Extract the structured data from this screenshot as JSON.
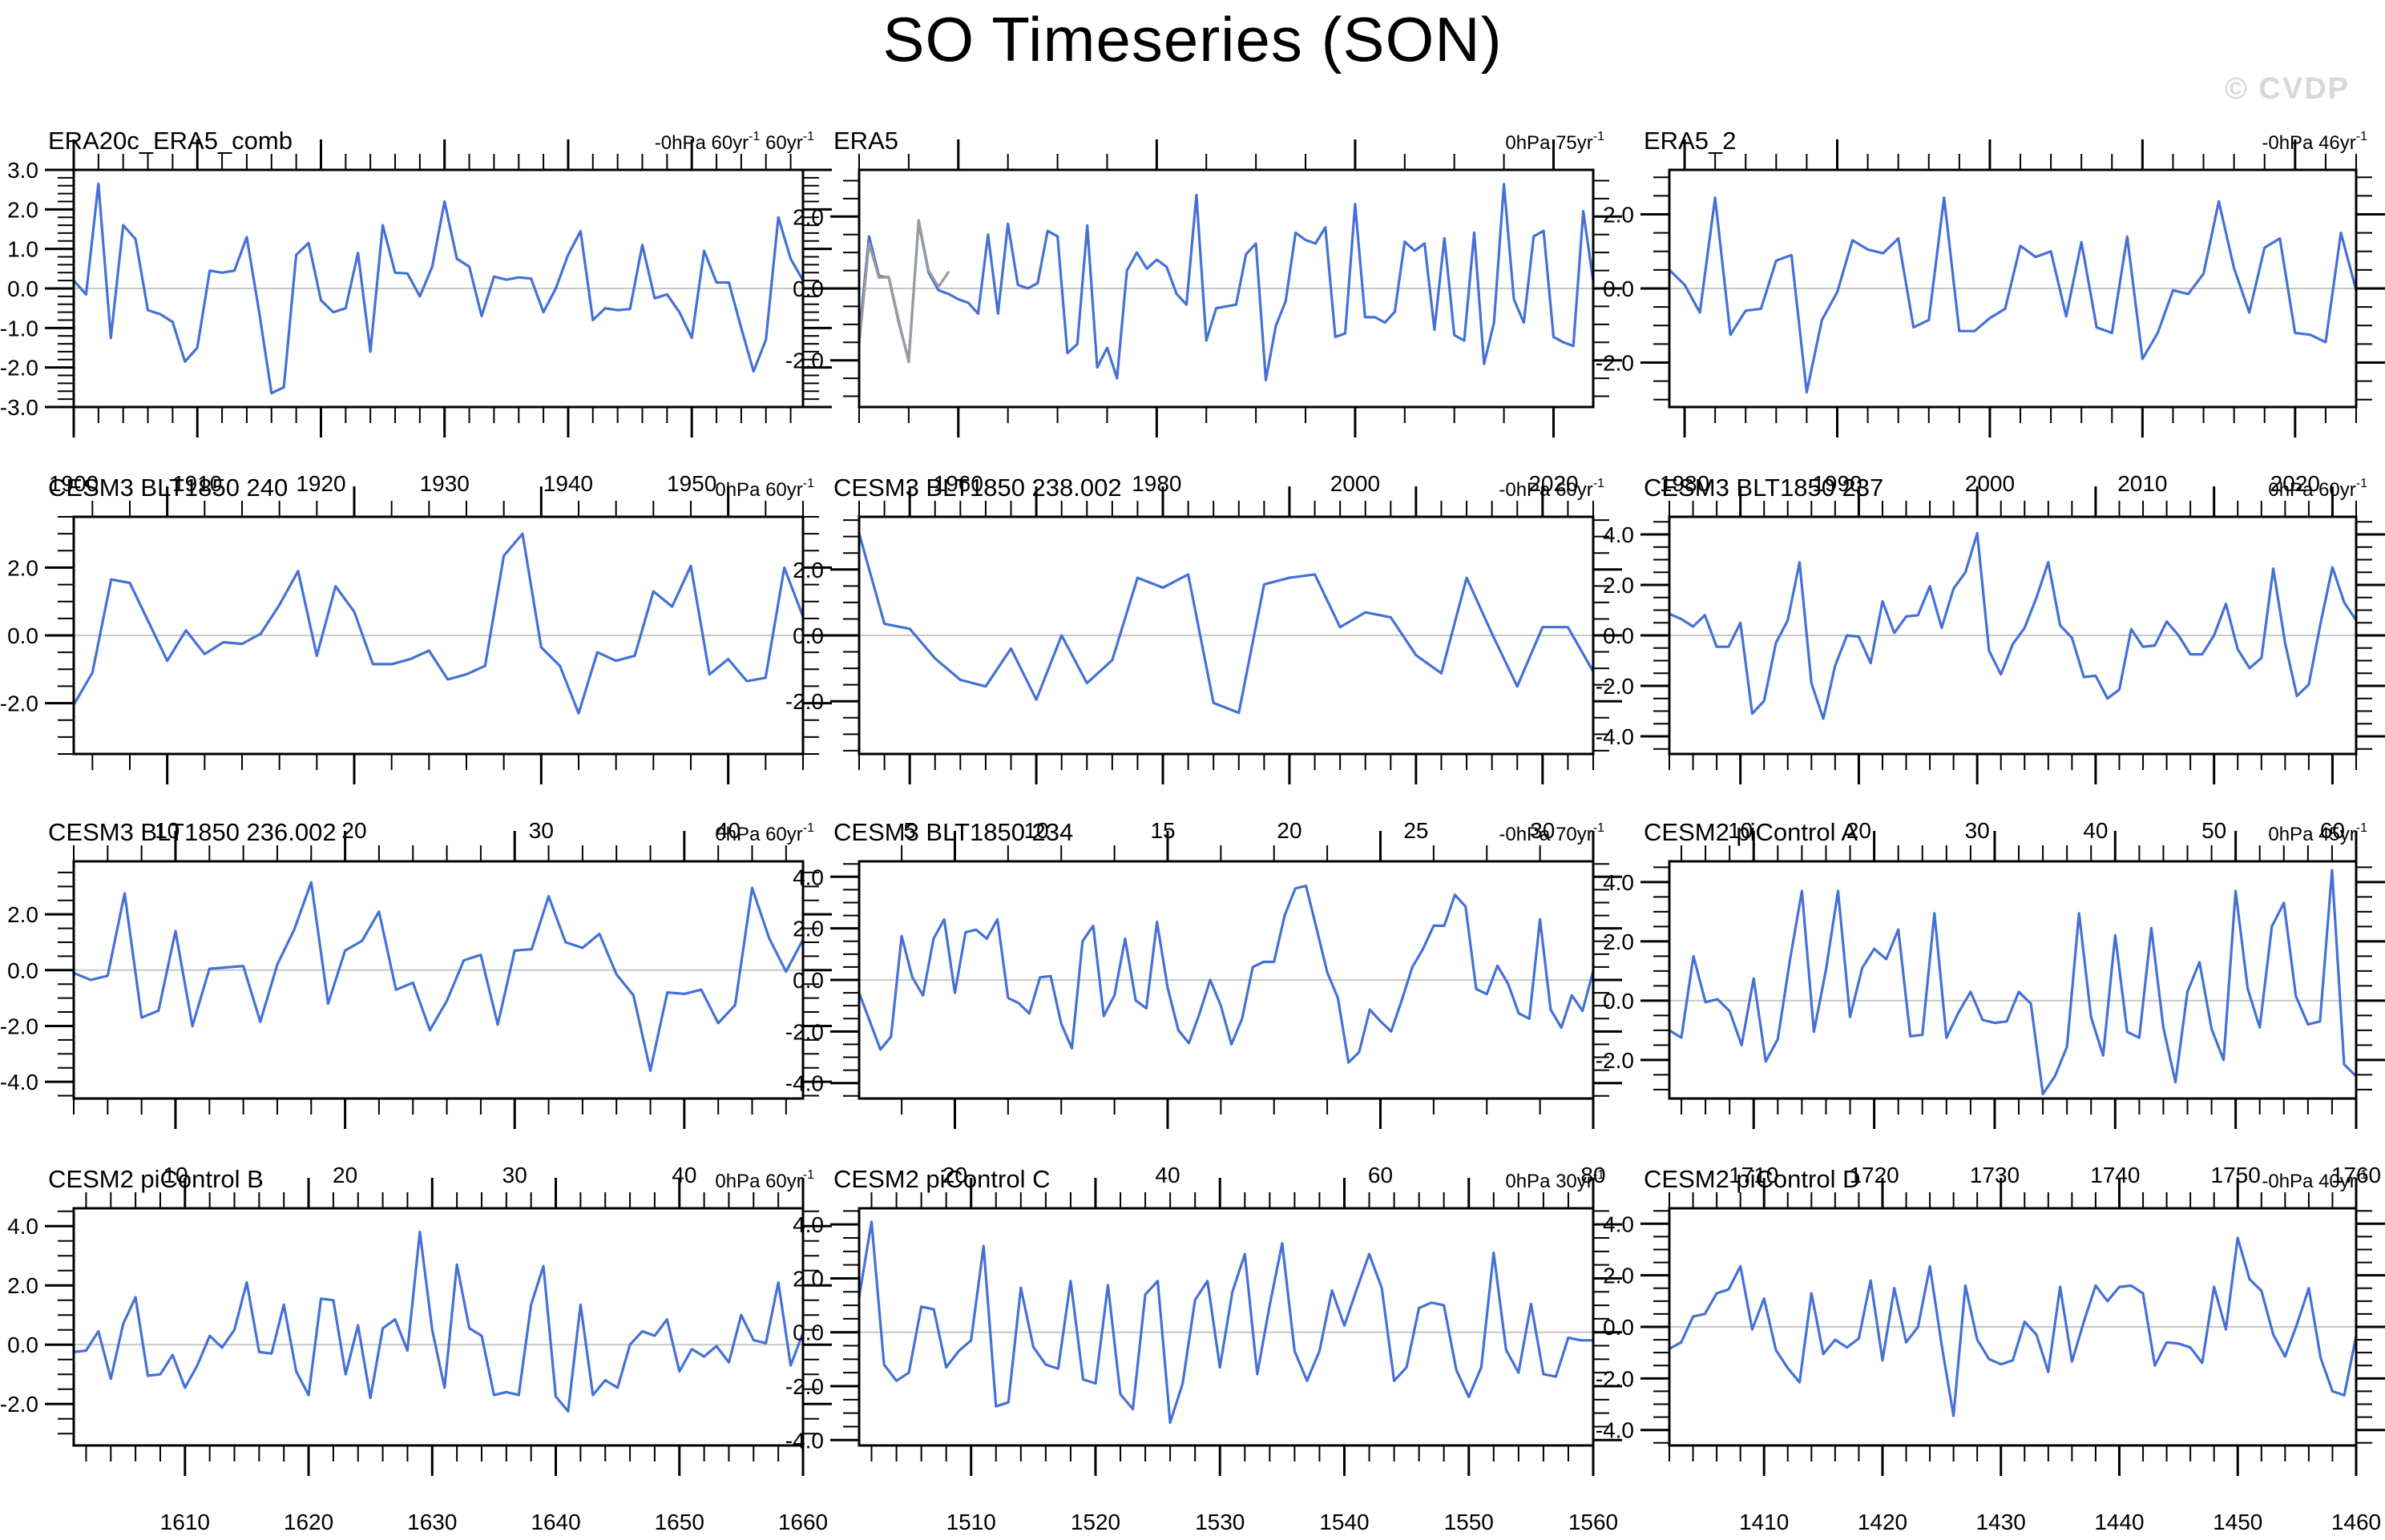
{
  "page": {
    "title": "SO Timeseries (SON)",
    "watermark": "© CVDP"
  },
  "colors": {
    "series_line": "#4471D6",
    "secondary_line": "#9b9b9b",
    "zero_line": "#c8c8c8",
    "axis": "#000000",
    "watermark": "#d8d8d8"
  },
  "chart_data": [
    {
      "type": "line",
      "title": "ERA20c_ERA5_comb",
      "header_right": "-0hPa 60yr^-1 60yr^-1",
      "x_start": 1900,
      "xlim": [
        1900,
        1959
      ],
      "xticks": [
        1900,
        1910,
        1920,
        1930,
        1940,
        1950
      ],
      "x_minor_step": 2,
      "ylim": [
        -3.0,
        3.0
      ],
      "yticks": [
        3.0,
        2.0,
        1.0,
        0.0,
        -1.0,
        -2.0,
        -3.0
      ],
      "y_minor_step": 0.2,
      "values": [
        0.2,
        -0.15,
        2.65,
        -1.25,
        1.6,
        1.25,
        -0.55,
        -0.65,
        -0.85,
        -1.85,
        -1.5,
        0.45,
        0.4,
        0.45,
        1.3,
        -0.6,
        -2.65,
        -2.5,
        0.85,
        1.15,
        -0.3,
        -0.6,
        -0.5,
        0.9,
        -1.6,
        1.6,
        0.4,
        0.38,
        -0.2,
        0.55,
        2.2,
        0.75,
        0.55,
        -0.7,
        0.3,
        0.22,
        0.28,
        0.25,
        -0.6,
        0.0,
        0.85,
        1.45,
        -0.8,
        -0.5,
        -0.55,
        -0.52,
        1.1,
        -0.25,
        -0.15,
        -0.6,
        -1.25,
        0.95,
        0.15,
        0.15,
        -1.0,
        -2.1,
        -1.3,
        1.8,
        0.75,
        0.2
      ]
    },
    {
      "type": "line",
      "title": "ERA5",
      "header_right": "0hPa 75yr^-1",
      "x_start": 1950,
      "xlim": [
        1950,
        2024
      ],
      "xticks": [
        1960,
        1980,
        2000,
        2020
      ],
      "x_minor_step": 5,
      "ylim": [
        -3.3,
        3.3
      ],
      "yticks": [
        2.0,
        0.0,
        -2.0
      ],
      "y_minor_step": 0.5,
      "values": [
        -1.35,
        1.45,
        0.35,
        0.3,
        -0.95,
        -2.0,
        1.85,
        0.45,
        -0.05,
        -0.15,
        -0.3,
        -0.4,
        -0.7,
        1.5,
        -0.7,
        1.8,
        0.1,
        0.0,
        0.15,
        1.6,
        1.45,
        -1.8,
        -1.55,
        1.75,
        -2.2,
        -1.65,
        -2.5,
        0.5,
        1.0,
        0.55,
        0.8,
        0.6,
        -0.15,
        -0.45,
        2.6,
        -1.45,
        -0.55,
        -0.5,
        -0.45,
        0.95,
        1.25,
        -2.55,
        -1.05,
        -0.35,
        1.55,
        1.35,
        1.25,
        1.7,
        -1.35,
        -1.25,
        2.35,
        -0.8,
        -0.8,
        -0.95,
        -0.65,
        1.3,
        1.05,
        1.25,
        -1.15,
        1.4,
        -1.3,
        -1.45,
        1.55,
        -2.1,
        -0.95,
        2.9,
        -0.3,
        -0.95,
        1.45,
        1.6,
        -1.35,
        -1.5,
        -1.6,
        2.15,
        0.2
      ],
      "series2": {
        "name": "overlap segment",
        "x_start": 1950,
        "values": [
          -1.55,
          1.25,
          0.3,
          0.32,
          -0.9,
          -2.05,
          1.9,
          0.5,
          0.05,
          0.45
        ]
      }
    },
    {
      "type": "line",
      "title": "ERA5_2",
      "header_right": "-0hPa 46yr^-1",
      "x_start": 1979,
      "xlim": [
        1979,
        2024
      ],
      "xticks": [
        1980,
        1990,
        2000,
        2010,
        2020
      ],
      "x_minor_step": 2,
      "ylim": [
        -3.2,
        3.2
      ],
      "yticks": [
        2.0,
        0.0,
        -2.0
      ],
      "y_minor_step": 0.5,
      "values": [
        0.5,
        0.1,
        -0.65,
        2.45,
        -1.25,
        -0.6,
        -0.55,
        0.75,
        0.9,
        -2.8,
        -0.85,
        -0.1,
        1.3,
        1.05,
        0.95,
        1.35,
        -1.05,
        -0.85,
        2.45,
        -1.15,
        -1.15,
        -0.8,
        -0.55,
        1.15,
        0.85,
        1.0,
        -0.75,
        1.25,
        -1.05,
        -1.2,
        1.4,
        -1.9,
        -1.2,
        -0.05,
        -0.15,
        0.4,
        2.35,
        0.55,
        -0.65,
        1.1,
        1.35,
        -1.2,
        -1.25,
        -1.45,
        1.5,
        -0.05
      ]
    },
    {
      "type": "line",
      "title": "CESM3 BLT1850 240",
      "header_right": "0hPa 60yr^-1",
      "x_start": 5,
      "xlim": [
        5,
        44
      ],
      "xticks": [
        10,
        20,
        30,
        40
      ],
      "x_minor_step": 2,
      "ylim": [
        -3.5,
        3.5
      ],
      "yticks": [
        2.0,
        0.0,
        -2.0
      ],
      "y_minor_step": 0.5,
      "values": [
        -2.05,
        -1.1,
        1.65,
        1.55,
        0.4,
        -0.75,
        0.15,
        -0.55,
        -0.2,
        -0.25,
        0.05,
        0.9,
        1.9,
        -0.6,
        1.45,
        0.7,
        -0.85,
        -0.85,
        -0.7,
        -0.45,
        -1.3,
        -1.15,
        -0.9,
        2.35,
        3.0,
        -0.35,
        -0.9,
        -2.3,
        -0.5,
        -0.75,
        -0.6,
        1.3,
        0.85,
        2.05,
        -1.15,
        -0.7,
        -1.35,
        -1.25,
        2.0,
        0.55
      ]
    },
    {
      "type": "line",
      "title": "CESM3 BLT1850 238.002",
      "header_right": "-0hPa 60yr^-1",
      "x_start": 3,
      "xlim": [
        3,
        32
      ],
      "xticks": [
        5,
        10,
        15,
        20,
        25,
        30
      ],
      "x_minor_step": 1,
      "ylim": [
        -3.6,
        3.6
      ],
      "yticks": [
        2.0,
        0.0,
        -2.0
      ],
      "y_minor_step": 0.5,
      "values": [
        3.1,
        0.35,
        0.2,
        -0.7,
        -1.35,
        -1.55,
        -0.4,
        -1.95,
        0.0,
        -1.45,
        -0.75,
        1.75,
        1.45,
        1.85,
        -2.05,
        -2.35,
        1.55,
        1.75,
        1.85,
        0.25,
        0.7,
        0.55,
        -0.6,
        -1.15,
        1.75,
        0.05,
        -1.55,
        0.25,
        0.25,
        -1.1
      ]
    },
    {
      "type": "line",
      "title": "CESM3 BLT1850 237",
      "header_right": "0hPa 60yr^-1",
      "x_start": 4,
      "xlim": [
        4,
        62
      ],
      "xticks": [
        10,
        20,
        30,
        40,
        50,
        60
      ],
      "x_minor_step": 2,
      "ylim": [
        -4.7,
        4.7
      ],
      "yticks": [
        4.0,
        2.0,
        0.0,
        -2.0,
        -4.0
      ],
      "y_minor_step": 0.5,
      "values": [
        0.85,
        0.65,
        0.35,
        0.8,
        -0.45,
        -0.45,
        0.5,
        -3.1,
        -2.6,
        -0.3,
        0.6,
        2.9,
        -1.9,
        -3.3,
        -1.2,
        0.0,
        -0.05,
        -1.1,
        1.35,
        0.1,
        0.75,
        0.8,
        1.95,
        0.3,
        1.85,
        2.5,
        4.05,
        -0.6,
        -1.55,
        -0.35,
        0.3,
        1.5,
        2.9,
        0.4,
        -0.1,
        -1.65,
        -1.6,
        -2.5,
        -2.15,
        0.25,
        -0.45,
        -0.4,
        0.55,
        0.0,
        -0.75,
        -0.75,
        0.0,
        1.25,
        -0.55,
        -1.3,
        -0.9,
        2.65,
        -0.3,
        -2.4,
        -1.95,
        0.5,
        2.7,
        1.3,
        0.6
      ]
    },
    {
      "type": "line",
      "title": "CESM3 BLT1850 236.002",
      "header_right": "0hPa 60yr^-1",
      "x_start": 4,
      "xlim": [
        4,
        47
      ],
      "xticks": [
        10,
        20,
        30,
        40
      ],
      "x_minor_step": 2,
      "ylim": [
        -4.6,
        3.9
      ],
      "yticks": [
        2.0,
        0.0,
        -2.0,
        -4.0
      ],
      "y_minor_step": 0.5,
      "values": [
        -0.1,
        -0.35,
        -0.2,
        2.75,
        -1.7,
        -1.45,
        1.4,
        -2.0,
        0.05,
        0.1,
        0.15,
        -1.85,
        0.2,
        1.45,
        3.15,
        -1.2,
        0.7,
        1.05,
        2.1,
        -0.7,
        -0.45,
        -2.15,
        -1.1,
        0.35,
        0.55,
        -1.95,
        0.7,
        0.75,
        2.65,
        1.0,
        0.8,
        1.3,
        -0.15,
        -0.9,
        -3.6,
        -0.8,
        -0.85,
        -0.7,
        -1.9,
        -1.25,
        2.95,
        1.15,
        -0.05,
        1.1
      ]
    },
    {
      "type": "line",
      "title": "CESM3 BLT1850 234",
      "header_right": "-0hPa 70yr^-1",
      "x_start": 11,
      "xlim": [
        11,
        80
      ],
      "xticks": [
        20,
        40,
        60,
        80
      ],
      "x_minor_step": 5,
      "ylim": [
        -4.6,
        4.6
      ],
      "yticks": [
        4.0,
        2.0,
        0.0,
        -2.0,
        -4.0
      ],
      "y_minor_step": 0.5,
      "values": [
        -0.5,
        -1.6,
        -2.7,
        -2.2,
        1.7,
        0.1,
        -0.6,
        1.6,
        2.35,
        -0.5,
        1.85,
        1.95,
        1.6,
        2.35,
        -0.7,
        -0.9,
        -1.3,
        0.1,
        0.15,
        -1.7,
        -2.65,
        1.5,
        2.1,
        -1.4,
        -0.6,
        1.6,
        -0.8,
        -1.1,
        2.25,
        -0.3,
        -1.95,
        -2.45,
        -1.3,
        0.0,
        -1.0,
        -2.5,
        -1.5,
        0.5,
        0.7,
        0.7,
        2.5,
        3.55,
        3.65,
        2.0,
        0.3,
        -0.7,
        -3.2,
        -2.8,
        -1.15,
        -1.6,
        -2.0,
        -0.8,
        0.5,
        1.2,
        2.1,
        2.1,
        3.3,
        2.85,
        -0.35,
        -0.55,
        0.55,
        -0.15,
        -1.3,
        -1.5,
        2.35,
        -1.15,
        -1.85,
        -0.6,
        -1.2,
        0.35
      ]
    },
    {
      "type": "line",
      "title": "CESM2 piControl A",
      "header_right": "0hPa 45yr^-1",
      "x_start": 1703,
      "xlim": [
        1703,
        1760
      ],
      "xticks": [
        1710,
        1720,
        1730,
        1740,
        1750,
        1760
      ],
      "x_minor_step": 2,
      "ylim": [
        -3.3,
        4.7
      ],
      "yticks": [
        4.0,
        2.0,
        0.0,
        -2.0
      ],
      "y_minor_step": 0.5,
      "values": [
        -1.0,
        -1.25,
        1.5,
        -0.05,
        0.05,
        -0.35,
        -1.5,
        0.75,
        -2.05,
        -1.3,
        1.35,
        3.7,
        -1.05,
        1.05,
        3.7,
        -0.55,
        1.1,
        1.75,
        1.4,
        2.4,
        -1.2,
        -1.15,
        2.95,
        -1.25,
        -0.4,
        0.3,
        -0.65,
        -0.75,
        -0.7,
        0.3,
        -0.1,
        -3.15,
        -2.55,
        -1.55,
        2.95,
        -0.55,
        -1.85,
        2.2,
        -1.05,
        -1.25,
        2.45,
        -0.9,
        -2.75,
        0.3,
        1.3,
        -0.95,
        -2.0,
        3.7,
        0.4,
        -0.9,
        2.5,
        3.3,
        0.15,
        -0.8,
        -0.7,
        4.4,
        -2.15,
        -2.55
      ]
    },
    {
      "type": "line",
      "title": "CESM2 piControl B",
      "header_right": "0hPa 60yr^-1",
      "x_start": 1601,
      "xlim": [
        1601,
        1660
      ],
      "xticks": [
        1610,
        1620,
        1630,
        1640,
        1650,
        1660
      ],
      "x_minor_step": 2,
      "ylim": [
        -3.4,
        4.6
      ],
      "yticks": [
        4.0,
        2.0,
        0.0,
        -2.0
      ],
      "y_minor_step": 0.5,
      "values": [
        -0.25,
        -0.2,
        0.45,
        -1.15,
        0.7,
        1.6,
        -1.05,
        -1.0,
        -0.35,
        -1.45,
        -0.7,
        0.3,
        -0.1,
        0.5,
        2.1,
        -0.25,
        -0.3,
        1.35,
        -0.9,
        -1.7,
        1.55,
        1.5,
        -1.0,
        0.65,
        -1.8,
        0.55,
        0.85,
        -0.2,
        3.8,
        0.5,
        -1.45,
        2.7,
        0.55,
        0.3,
        -1.7,
        -1.6,
        -1.7,
        1.35,
        2.65,
        -1.75,
        -2.25,
        1.35,
        -1.7,
        -1.2,
        -1.45,
        0.0,
        0.45,
        0.3,
        0.85,
        -0.9,
        -0.15,
        -0.4,
        -0.05,
        -0.6,
        1.0,
        0.15,
        0.05,
        2.1,
        -0.7,
        0.4
      ]
    },
    {
      "type": "line",
      "title": "CESM2 piControl C",
      "header_right": "0hPa 30yr^-1",
      "x_start": 1501,
      "xlim": [
        1501,
        1560
      ],
      "xticks": [
        1510,
        1520,
        1530,
        1540,
        1550,
        1560
      ],
      "x_minor_step": 2,
      "ylim": [
        -4.2,
        4.6
      ],
      "yticks": [
        4.0,
        2.0,
        0.0,
        -2.0,
        -4.0
      ],
      "y_minor_step": 0.5,
      "values": [
        1.3,
        4.1,
        -1.2,
        -1.8,
        -1.5,
        0.95,
        0.85,
        -1.3,
        -0.7,
        -0.3,
        3.2,
        -2.75,
        -2.6,
        1.65,
        -0.55,
        -1.2,
        -1.35,
        1.9,
        -1.75,
        -1.9,
        1.75,
        -2.3,
        -2.85,
        1.4,
        1.9,
        -3.35,
        -1.9,
        1.2,
        1.9,
        -1.3,
        1.5,
        2.9,
        -1.55,
        1.0,
        3.3,
        -0.7,
        -1.8,
        -0.7,
        1.55,
        0.25,
        1.6,
        2.9,
        1.65,
        -1.8,
        -1.3,
        0.9,
        1.1,
        1.0,
        -1.4,
        -2.4,
        -1.3,
        2.95,
        -0.65,
        -1.5,
        1.05,
        -1.55,
        -1.65,
        -0.2,
        -0.3,
        -0.3
      ]
    },
    {
      "type": "line",
      "title": "CESM2 piControl D",
      "header_right": "-0hPa 40yr^-1",
      "x_start": 1402,
      "xlim": [
        1402,
        1460
      ],
      "xticks": [
        1410,
        1420,
        1430,
        1440,
        1450,
        1460
      ],
      "x_minor_step": 2,
      "ylim": [
        -4.6,
        4.6
      ],
      "yticks": [
        4.0,
        2.0,
        0.0,
        -2.0,
        -4.0
      ],
      "y_minor_step": 0.5,
      "values": [
        -0.85,
        -0.6,
        0.4,
        0.5,
        1.3,
        1.45,
        2.35,
        -0.1,
        1.1,
        -0.9,
        -1.6,
        -2.15,
        1.3,
        -1.05,
        -0.5,
        -0.8,
        -0.45,
        1.8,
        -1.3,
        1.5,
        -0.6,
        0.0,
        2.35,
        -0.7,
        -3.45,
        1.6,
        -0.5,
        -1.25,
        -1.45,
        -1.3,
        0.2,
        -0.3,
        -1.75,
        1.55,
        -1.35,
        0.2,
        1.6,
        1.0,
        1.55,
        1.6,
        1.3,
        -1.5,
        -0.6,
        -0.65,
        -0.8,
        -1.4,
        1.55,
        -0.1,
        3.45,
        1.85,
        1.4,
        -0.3,
        -1.15,
        0.1,
        1.5,
        -1.2,
        -2.5,
        -2.65,
        -0.35
      ]
    }
  ]
}
